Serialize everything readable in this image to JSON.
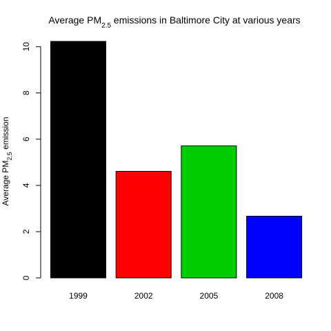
{
  "chart_data": {
    "type": "bar",
    "title": {
      "prefix": "Average PM",
      "subscript": "2.5",
      "suffix": " emissions in Baltimore City at various years"
    },
    "ylabel": {
      "prefix": "Average PM",
      "subscript": "2.5",
      "suffix": " emission"
    },
    "xlabel": "",
    "categories": [
      "1999",
      "2002",
      "2005",
      "2008"
    ],
    "values": [
      10.23,
      4.61,
      5.71,
      2.67
    ],
    "colors": [
      "#000000",
      "#ff0000",
      "#00cd00",
      "#0000ff"
    ],
    "ylim": [
      0,
      10.23
    ],
    "yticks": [
      0,
      2,
      4,
      6,
      8,
      10
    ],
    "ytick_labels": [
      "0",
      "2",
      "4",
      "6",
      "8",
      "10"
    ],
    "grid": false,
    "legend": "none"
  }
}
